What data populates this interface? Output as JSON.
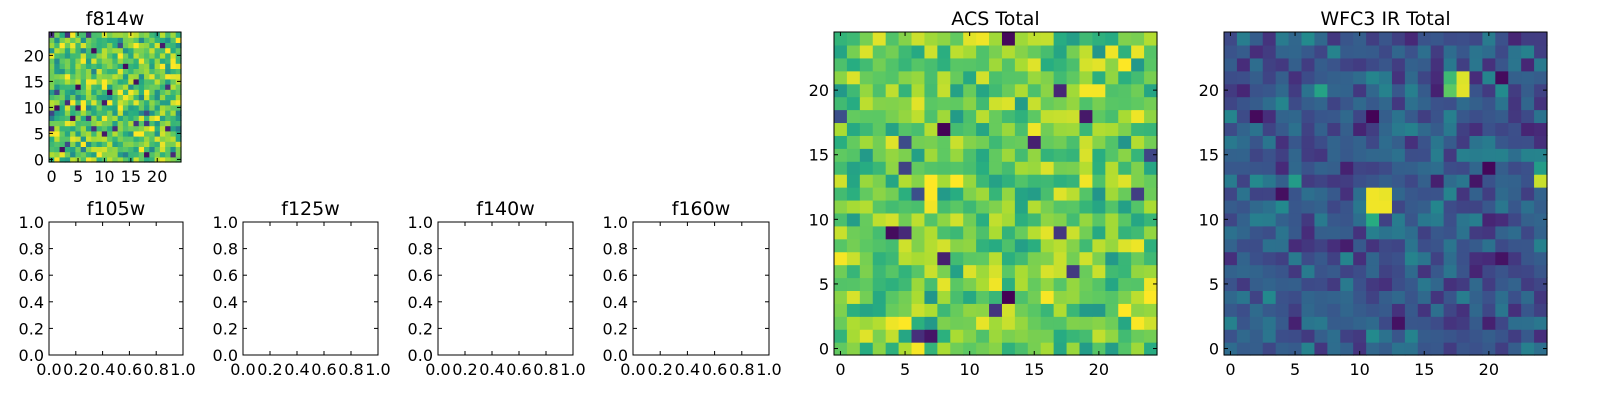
{
  "colors": {
    "viridis": [
      "#440154",
      "#472c7a",
      "#3b518b",
      "#2c718e",
      "#21908d",
      "#27ad81",
      "#5cc863",
      "#aadc32",
      "#fde725"
    ]
  },
  "chart_data": [
    {
      "id": "f814w",
      "type": "heatmap",
      "title": "f814w",
      "grid_size": 25,
      "xlim": [
        0,
        24
      ],
      "ylim": [
        0,
        24
      ],
      "xticks": [
        "0",
        "5",
        "10",
        "15",
        "20"
      ],
      "yticks": [
        "0",
        "5",
        "10",
        "15",
        "20"
      ],
      "tick_values": [
        0,
        5,
        10,
        15,
        20
      ],
      "colormap": "viridis",
      "value_mean": 0.75,
      "value_spread": 0.22,
      "seed": 814,
      "hotspots": []
    },
    {
      "id": "f105w",
      "type": "empty-axes",
      "title": "f105w",
      "xlim": [
        0.0,
        1.0
      ],
      "ylim": [
        0.0,
        1.0
      ],
      "xticks": [
        "0.0",
        "0.2",
        "0.4",
        "0.6",
        "0.8",
        "1.0"
      ],
      "yticks": [
        "0.0",
        "0.2",
        "0.4",
        "0.6",
        "0.8",
        "1.0"
      ],
      "tick_values": [
        0.0,
        0.2,
        0.4,
        0.6,
        0.8,
        1.0
      ]
    },
    {
      "id": "f125w",
      "type": "empty-axes",
      "title": "f125w",
      "xlim": [
        0.0,
        1.0
      ],
      "ylim": [
        0.0,
        1.0
      ],
      "xticks": [
        "0.0",
        "0.2",
        "0.4",
        "0.6",
        "0.8",
        "1.0"
      ],
      "yticks": [
        "0.0",
        "0.2",
        "0.4",
        "0.6",
        "0.8",
        "1.0"
      ],
      "tick_values": [
        0.0,
        0.2,
        0.4,
        0.6,
        0.8,
        1.0
      ]
    },
    {
      "id": "f140w",
      "type": "empty-axes",
      "title": "f140w",
      "xlim": [
        0.0,
        1.0
      ],
      "ylim": [
        0.0,
        1.0
      ],
      "xticks": [
        "0.0",
        "0.2",
        "0.4",
        "0.6",
        "0.8",
        "1.0"
      ],
      "yticks": [
        "0.0",
        "0.2",
        "0.4",
        "0.6",
        "0.8",
        "1.0"
      ],
      "tick_values": [
        0.0,
        0.2,
        0.4,
        0.6,
        0.8,
        1.0
      ]
    },
    {
      "id": "f160w",
      "type": "empty-axes",
      "title": "f160w",
      "xlim": [
        0.0,
        1.0
      ],
      "ylim": [
        0.0,
        1.0
      ],
      "xticks": [
        "0.0",
        "0.2",
        "0.4",
        "0.6",
        "0.8",
        "1.0"
      ],
      "yticks": [
        "0.0",
        "0.2",
        "0.4",
        "0.6",
        "0.8",
        "1.0"
      ],
      "tick_values": [
        0.0,
        0.2,
        0.4,
        0.6,
        0.8,
        1.0
      ]
    },
    {
      "id": "acs-total",
      "type": "heatmap",
      "title": "ACS Total",
      "grid_size": 25,
      "xlim": [
        0,
        24
      ],
      "ylim": [
        0,
        24
      ],
      "xticks": [
        "0",
        "5",
        "10",
        "15",
        "20"
      ],
      "yticks": [
        "0",
        "5",
        "10",
        "15",
        "20"
      ],
      "tick_values": [
        0,
        5,
        10,
        15,
        20
      ],
      "colormap": "viridis",
      "value_mean": 0.78,
      "value_spread": 0.17,
      "seed": 1234,
      "hotspots": []
    },
    {
      "id": "wfc3-ir-total",
      "type": "heatmap",
      "title": "WFC3 IR Total",
      "grid_size": 25,
      "xlim": [
        0,
        24
      ],
      "ylim": [
        0,
        24
      ],
      "xticks": [
        "0",
        "5",
        "10",
        "15",
        "20"
      ],
      "yticks": [
        "0",
        "5",
        "10",
        "15",
        "20"
      ],
      "tick_values": [
        0,
        5,
        10,
        15,
        20
      ],
      "colormap": "viridis",
      "value_mean": 0.28,
      "value_spread": 0.13,
      "seed": 3160,
      "hotspots": [
        {
          "x": 11,
          "y": 11,
          "value": 0.98
        },
        {
          "x": 12,
          "y": 11,
          "value": 0.98
        },
        {
          "x": 11,
          "y": 12,
          "value": 0.98
        },
        {
          "x": 12,
          "y": 12,
          "value": 0.97
        },
        {
          "x": 11,
          "y": 10,
          "value": 0.62
        },
        {
          "x": 18,
          "y": 20,
          "value": 0.96
        },
        {
          "x": 18,
          "y": 21,
          "value": 0.95
        },
        {
          "x": 17,
          "y": 21,
          "value": 0.68
        },
        {
          "x": 17,
          "y": 20,
          "value": 0.75
        },
        {
          "x": 24,
          "y": 13,
          "value": 0.92
        },
        {
          "x": 24,
          "y": 14,
          "value": 0.55
        },
        {
          "x": 7,
          "y": 20,
          "value": 0.58
        },
        {
          "x": 5,
          "y": 13,
          "value": 0.55
        }
      ]
    }
  ]
}
